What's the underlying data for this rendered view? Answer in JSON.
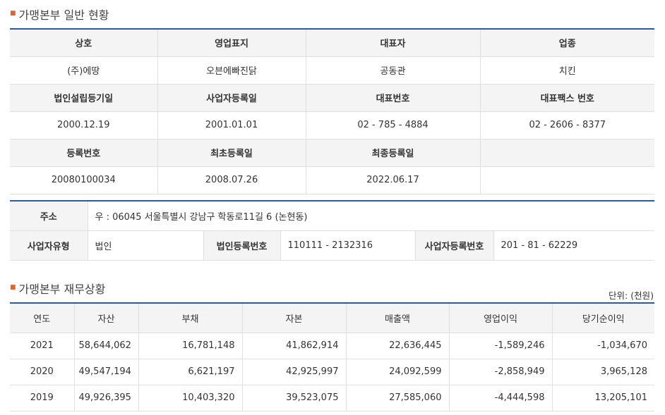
{
  "general": {
    "title": "가맹본부 일반 현황",
    "rows": [
      {
        "kind": "header",
        "cells": [
          "상호",
          "영업표지",
          "대표자",
          "업종"
        ]
      },
      {
        "kind": "data",
        "cells": [
          "(주)에땅",
          "오븐에빠진닭",
          "공동관",
          "치킨"
        ]
      },
      {
        "kind": "header",
        "cells": [
          "법인설립등기일",
          "사업자등록일",
          "대표번호",
          "대표팩스 번호"
        ]
      },
      {
        "kind": "data",
        "cells": [
          "2000.12.19",
          "2001.01.01",
          "02 - 785 - 4884",
          "02 - 2606 - 8377"
        ]
      },
      {
        "kind": "header",
        "cells": [
          "등록번호",
          "최초등록일",
          "최종등록일",
          ""
        ]
      },
      {
        "kind": "data",
        "cells": [
          "20080100034",
          "2008.07.26",
          "2022.06.17",
          ""
        ]
      }
    ]
  },
  "address": {
    "label": "주소",
    "value": "우 : 06045 서울특별시 강남구 학동로11길 6 (논현동)",
    "biz_type_label": "사업자유형",
    "biz_type_value": "법인",
    "corp_reg_label": "법인등록번호",
    "corp_reg_value": "110111 - 2132316",
    "biz_reg_label": "사업자등록번호",
    "biz_reg_value": "201 - 81 - 62229"
  },
  "finance": {
    "title": "가맹본부 재무상황",
    "unit": "단위: (천원)",
    "headers": [
      "연도",
      "자산",
      "부채",
      "자본",
      "매출액",
      "영업이익",
      "당기순이익"
    ],
    "rows": [
      [
        "2021",
        "58,644,062",
        "16,781,148",
        "41,862,914",
        "22,636,445",
        "-1,589,246",
        "-1,034,670"
      ],
      [
        "2020",
        "49,547,194",
        "6,621,197",
        "42,925,997",
        "24,092,599",
        "-2,858,949",
        "3,965,128"
      ],
      [
        "2019",
        "49,926,395",
        "10,403,320",
        "39,523,075",
        "27,585,060",
        "-4,444,598",
        "13,205,101"
      ]
    ]
  }
}
